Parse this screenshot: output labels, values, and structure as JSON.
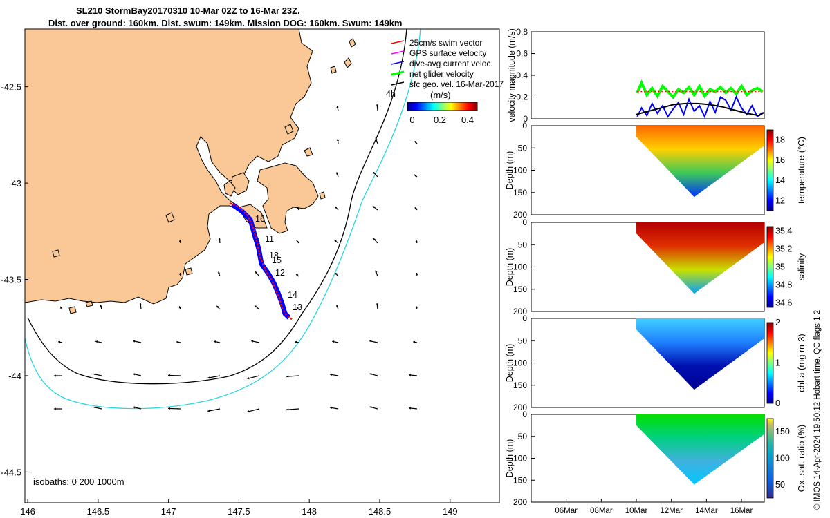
{
  "header": {
    "line1": "SL210 StormBay20170310 10-Mar 02Z to 16-Mar 23Z.",
    "line2": "Dist. over ground: 160km. Dist. swum: 149km. Mission DOG: 160km. Swum: 149km"
  },
  "map": {
    "lon_ticks": [
      "146",
      "146.5",
      "147",
      "147.5",
      "148",
      "148.5",
      "149"
    ],
    "lat_ticks": [
      "-42.5",
      "-43",
      "-43.5",
      "-44",
      "-44.5"
    ],
    "lon_range": [
      145.98,
      149.35
    ],
    "lat_range": [
      -44.66,
      -42.2
    ],
    "isobaths_label": "isobaths: 0   200  1000m",
    "day_labels": [
      "16",
      "11",
      "18",
      "15",
      "12",
      "14",
      "13"
    ],
    "time_marker": "4h",
    "legend": [
      {
        "label": "25cm/s swim vector",
        "color": "#ff0000"
      },
      {
        "label": "GPS surface velocity",
        "color": "#ff00ff"
      },
      {
        "label": "dive-avg current veloc.",
        "color": "#0000ff"
      },
      {
        "label": "net glider velocity",
        "color": "#00ff00"
      },
      {
        "label": "sfc geo. vel. 16-Mar-2017",
        "color": "#000000"
      }
    ],
    "colorbar": {
      "unit": "(m/s)",
      "ticks": [
        "0",
        "0.2",
        "0.4"
      ],
      "range": [
        0,
        0.5
      ]
    },
    "colors": {
      "land": "#fac896",
      "isobath_200": "#000000",
      "isobath_1000": "#2ad7e0",
      "track": "#0000ff",
      "swim": "#ff0000"
    }
  },
  "chart_data": [
    {
      "type": "line",
      "title": "",
      "xlabel": "",
      "ylabel": "velocity magnitude (m/s)",
      "ylim": [
        0,
        0.8
      ],
      "yticks": [
        "0",
        "0.2",
        "0.4",
        "0.6",
        "0.8"
      ],
      "x_range_days": [
        4,
        17.3
      ],
      "series": [
        {
          "name": "net glider velocity",
          "color": "#00ff00",
          "x": [
            10.05,
            10.3,
            10.6,
            10.9,
            11.2,
            11.5,
            11.8,
            12.1,
            12.4,
            12.7,
            13.0,
            13.3,
            13.6,
            13.9,
            14.2,
            14.5,
            14.8,
            15.1,
            15.4,
            15.7,
            16.0,
            16.3,
            16.6,
            16.9,
            17.2
          ],
          "values": [
            0.24,
            0.33,
            0.22,
            0.28,
            0.21,
            0.3,
            0.25,
            0.2,
            0.27,
            0.24,
            0.29,
            0.22,
            0.3,
            0.21,
            0.27,
            0.25,
            0.29,
            0.24,
            0.28,
            0.23,
            0.3,
            0.22,
            0.26,
            0.28,
            0.25
          ]
        },
        {
          "name": "dive-avg current veloc.",
          "color": "#0000ff",
          "x": [
            10.05,
            10.3,
            10.6,
            10.9,
            11.2,
            11.5,
            11.8,
            12.1,
            12.4,
            12.7,
            13.0,
            13.3,
            13.6,
            13.9,
            14.2,
            14.5,
            14.8,
            15.1,
            15.4,
            15.7,
            16.0,
            16.3,
            16.6,
            16.9,
            17.2
          ],
          "values": [
            0.02,
            0.1,
            0.03,
            0.14,
            0.05,
            0.12,
            0.02,
            0.09,
            0.15,
            0.04,
            0.18,
            0.07,
            0.12,
            0.02,
            0.16,
            0.06,
            0.2,
            0.17,
            0.08,
            0.2,
            0.1,
            0.04,
            0.12,
            0.02,
            0.06
          ]
        },
        {
          "name": "sfc geo. vel.",
          "color": "#000000",
          "x": [
            10.0,
            10.7,
            11.4,
            12.1,
            12.8,
            13.5,
            14.2,
            14.9,
            15.6,
            16.3,
            17.0,
            17.3
          ],
          "values": [
            0.04,
            0.07,
            0.1,
            0.13,
            0.14,
            0.14,
            0.13,
            0.11,
            0.08,
            0.05,
            0.03,
            0.06
          ]
        },
        {
          "name": "25cm/s swim vector",
          "color": "#ff0000",
          "x": [
            10.05,
            11.0,
            12.0,
            13.0,
            14.0,
            15.0,
            16.0,
            17.2
          ],
          "values": [
            0.25,
            0.25,
            0.25,
            0.25,
            0.25,
            0.25,
            0.25,
            0.25
          ]
        }
      ]
    },
    {
      "type": "heatmap",
      "ylabel": "Depth (m)",
      "ylim": [
        0,
        200
      ],
      "yticks": [
        "0",
        "50",
        "100",
        "150",
        "200"
      ],
      "x_range_days": [
        4,
        17.3
      ],
      "colorbar_label": "temperature (°C)",
      "colorbar_range": [
        11,
        19
      ],
      "colorbar_ticks": [
        "12",
        "14",
        "16",
        "18"
      ],
      "profile_days": [
        10.0,
        13.3,
        17.3
      ],
      "max_depth": [
        25,
        160,
        45
      ],
      "surface_value": 18,
      "bottom_value": 11.5
    }
  ],
  "sections": [
    {
      "ylabel": "Depth (m)",
      "yticks": [
        "0",
        "50",
        "100",
        "150",
        "200"
      ],
      "colorbar_label": "temperature (°C)",
      "colorbar_ticks": [
        "12",
        "14",
        "16",
        "18"
      ],
      "colorbar_range": [
        11,
        19
      ]
    },
    {
      "ylabel": "Depth (m)",
      "yticks": [
        "0",
        "50",
        "100",
        "150",
        "200"
      ],
      "colorbar_label": "salinity",
      "colorbar_ticks": [
        "34.6",
        "34.8",
        "35",
        "35.2",
        "35.4"
      ],
      "colorbar_range": [
        34.55,
        35.45
      ]
    },
    {
      "ylabel": "Depth (m)",
      "yticks": [
        "0",
        "50",
        "100",
        "150",
        "200"
      ],
      "colorbar_label": "chl-a (mg m-3)",
      "colorbar_ticks": [
        "0",
        "1",
        "2"
      ],
      "colorbar_range": [
        0,
        2
      ]
    },
    {
      "ylabel": "Depth (m)",
      "yticks": [
        "0",
        "50",
        "100",
        "150",
        "200"
      ],
      "colorbar_label": "Ox. sat. ratio (%)",
      "colorbar_ticks": [
        "50",
        "100",
        "150"
      ],
      "colorbar_range": [
        25,
        175
      ]
    }
  ],
  "time_axis": {
    "labels": [
      "06Mar",
      "08Mar",
      "10Mar",
      "12Mar",
      "14Mar",
      "16Mar"
    ],
    "days": [
      6,
      8,
      10,
      12,
      14,
      16
    ]
  },
  "credit": "© IMOS 14-Apr-2024 19:50:12 Hobart time. QC flags 1  2"
}
